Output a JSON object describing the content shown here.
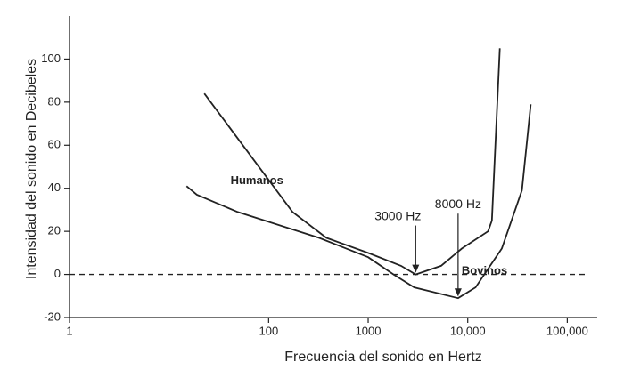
{
  "chart_data": {
    "type": "line",
    "x_label": "Frecuencia del sonido en Hertz",
    "y_label": "Intensidad del sonido en Decibeles",
    "xscale": "log",
    "xlim": [
      1,
      200000
    ],
    "xticks": [
      1,
      100,
      1000,
      {
        "value": 10000,
        "label": "10,000"
      },
      {
        "value": 100000,
        "label": "100,000"
      }
    ],
    "ylim": [
      -20,
      120
    ],
    "yticks": [
      -20,
      0,
      20,
      40,
      60,
      80,
      100
    ],
    "reference_line": 0,
    "series": [
      {
        "name": "Humanos",
        "color": "#222222",
        "x": [
          22.6,
          174,
          380,
          1000,
          2140,
          3000,
          5400,
          8700,
          16000,
          17500,
          21000
        ],
        "values": [
          84,
          29,
          17,
          10,
          4,
          0,
          4,
          12,
          20,
          25,
          105
        ]
      },
      {
        "name": "Bovinos",
        "color": "#222222",
        "x": [
          15,
          19,
          49,
          320,
          1000,
          1800,
          2900,
          8000,
          12000,
          22000,
          35000,
          43000
        ],
        "values": [
          41,
          37,
          29,
          17,
          8,
          0,
          -6,
          -11,
          -6,
          12,
          39,
          79
        ]
      }
    ],
    "annotations": [
      {
        "text": "3000 Hz",
        "series": 0,
        "point": 5
      },
      {
        "text": "8000 Hz",
        "series": 1,
        "point": 7
      }
    ]
  }
}
